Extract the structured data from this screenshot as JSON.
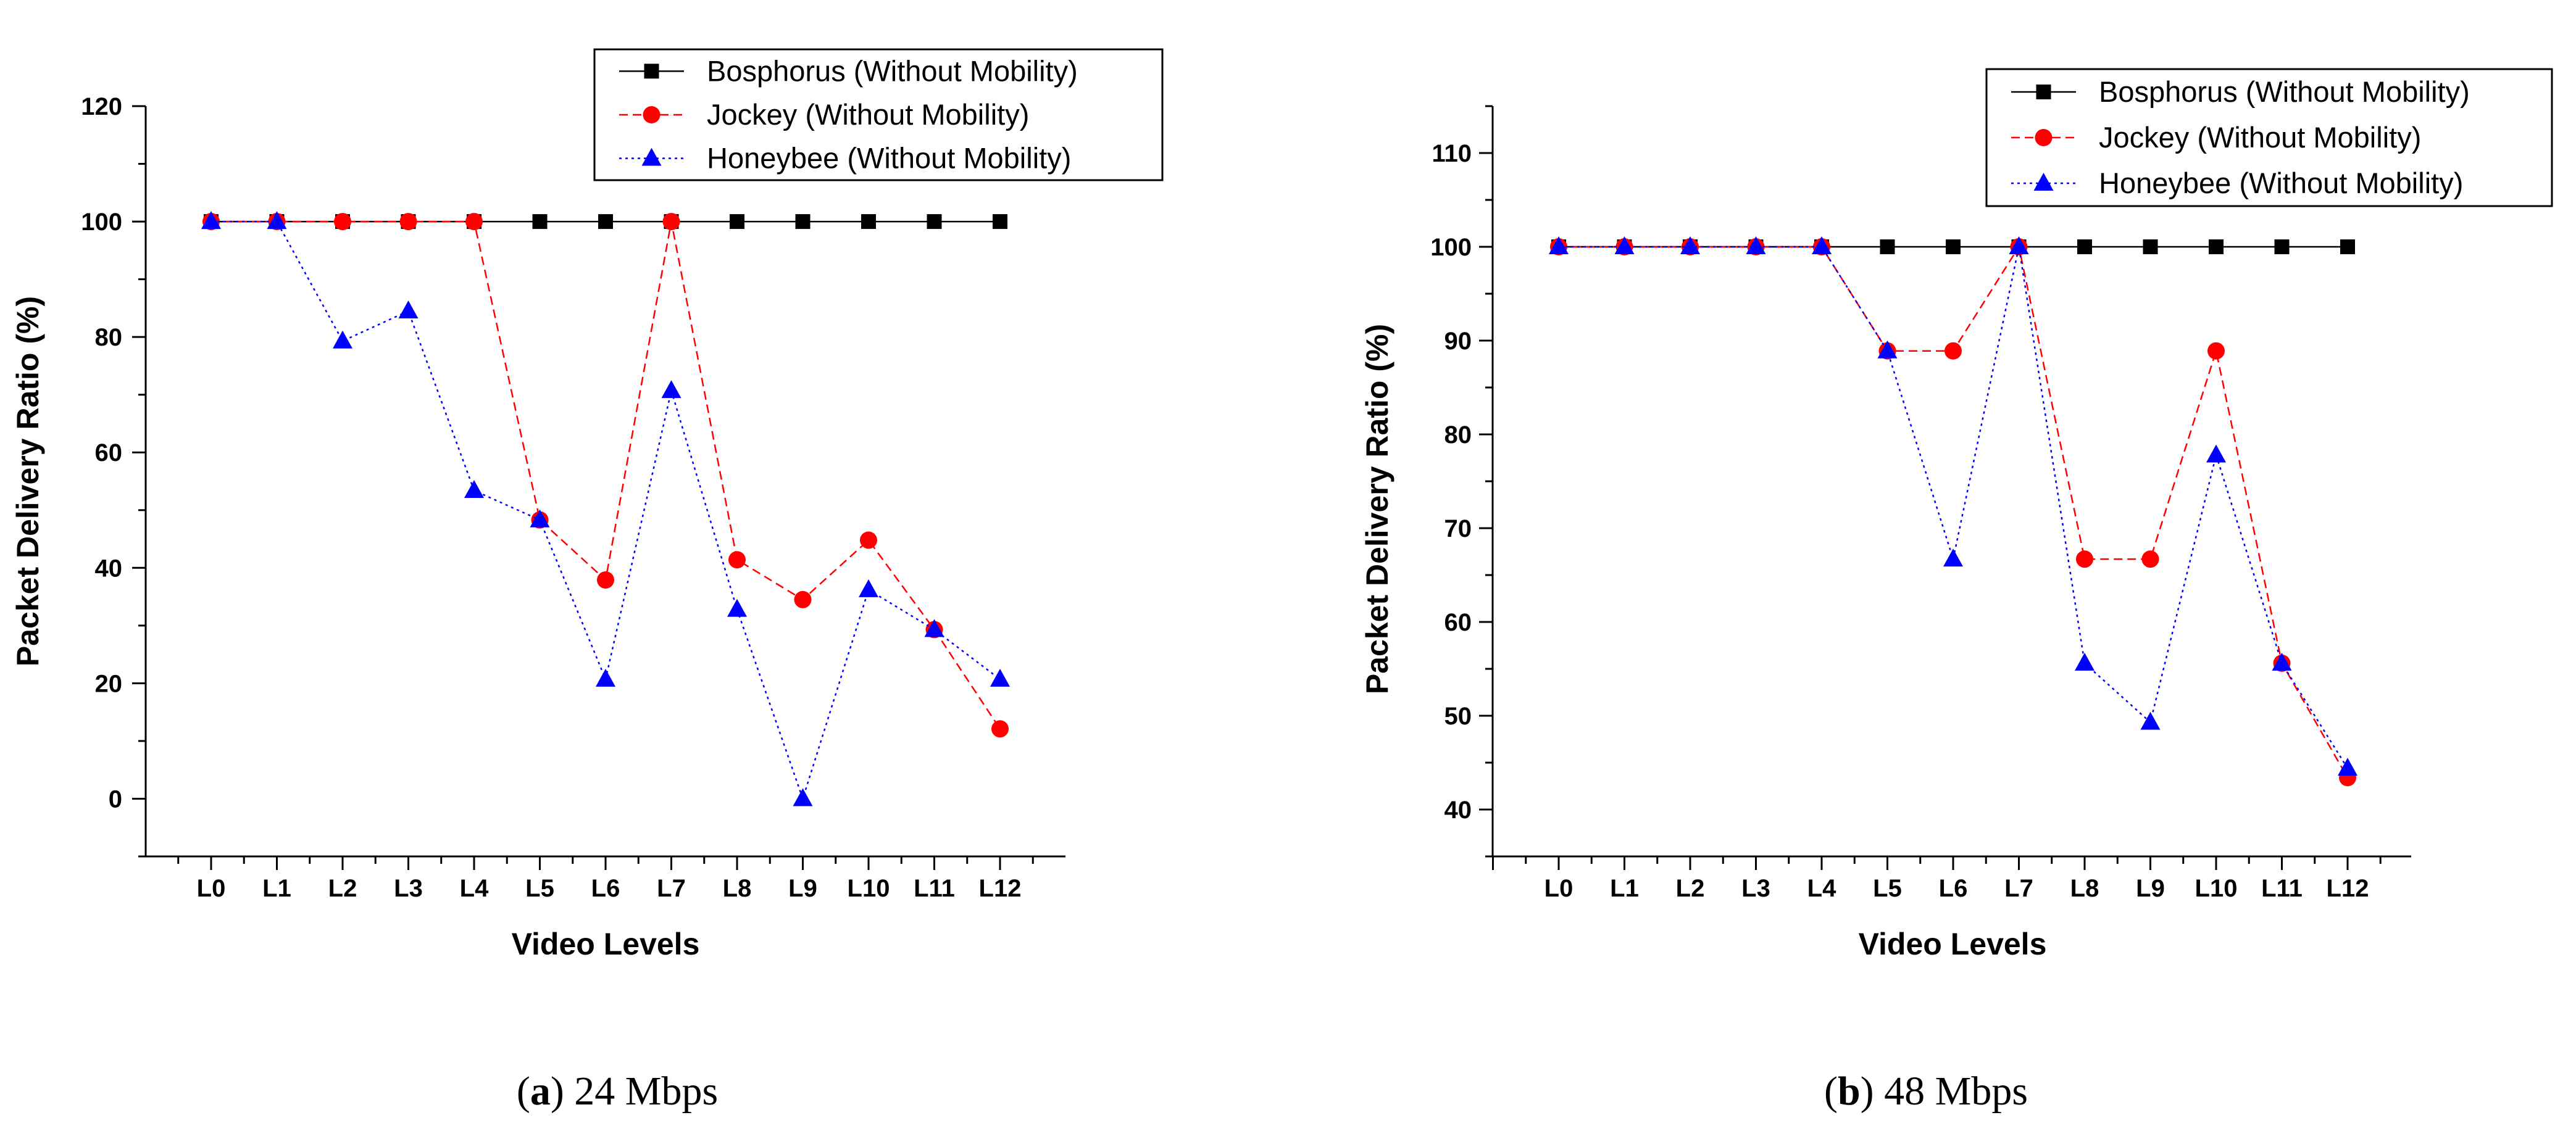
{
  "chart_data": [
    {
      "type": "line",
      "caption_letter": "a",
      "caption_text": "24 Mbps",
      "xlabel": "Video Levels",
      "ylabel": "Packet Delivery Ratio (%)",
      "ylim": [
        -10,
        120
      ],
      "yticks": [
        0,
        20,
        40,
        60,
        80,
        100,
        120
      ],
      "legend_position": "top-right",
      "categories": [
        "L0",
        "L1",
        "L2",
        "L3",
        "L4",
        "L5",
        "L6",
        "L7",
        "L8",
        "L9",
        "L10",
        "L11",
        "L12"
      ],
      "series": [
        {
          "name": "Bosphorus (Without Mobility)",
          "color": "#000000",
          "marker": "square",
          "line": "solid",
          "values": [
            100,
            100,
            100,
            100,
            100,
            100,
            100,
            100,
            100,
            100,
            100,
            100,
            100
          ]
        },
        {
          "name": "Jockey (Without Mobility)",
          "color": "#ff0000",
          "marker": "circle",
          "line": "dashed",
          "values": [
            100,
            100,
            100,
            100,
            100,
            48.3,
            37.9,
            100,
            41.4,
            34.5,
            44.8,
            29.3,
            12.1
          ]
        },
        {
          "name": "Honeybee (Without Mobility)",
          "color": "#0000ff",
          "marker": "triangle",
          "line": "dotted",
          "values": [
            100,
            100,
            79.3,
            84.5,
            53.4,
            48.3,
            20.7,
            70.7,
            32.8,
            0,
            36.2,
            29.3,
            20.7
          ]
        }
      ]
    },
    {
      "type": "line",
      "caption_letter": "b",
      "caption_text": "48 Mbps",
      "xlabel": "Video Levels",
      "ylabel": "Packet Delivery Ratio (%)",
      "ylim": [
        35,
        115
      ],
      "yticks": [
        40,
        50,
        60,
        70,
        80,
        90,
        100,
        110
      ],
      "legend_position": "top-right",
      "categories": [
        "L0",
        "L1",
        "L2",
        "L3",
        "L4",
        "L5",
        "L6",
        "L7",
        "L8",
        "L9",
        "L10",
        "L11",
        "L12"
      ],
      "series": [
        {
          "name": "Bosphorus (Without Mobility)",
          "color": "#000000",
          "marker": "square",
          "line": "solid",
          "values": [
            100,
            100,
            100,
            100,
            100,
            100,
            100,
            100,
            100,
            100,
            100,
            100,
            100
          ]
        },
        {
          "name": "Jockey (Without Mobility)",
          "color": "#ff0000",
          "marker": "circle",
          "line": "dashed",
          "values": [
            100,
            100,
            100,
            100,
            100,
            88.9,
            88.9,
            100,
            66.7,
            66.7,
            88.9,
            55.6,
            43.4
          ]
        },
        {
          "name": "Honeybee (Without Mobility)",
          "color": "#0000ff",
          "marker": "triangle",
          "line": "dotted",
          "values": [
            100,
            100,
            100,
            100,
            100,
            88.9,
            66.7,
            100,
            55.6,
            49.3,
            77.8,
            55.6,
            44.4
          ]
        }
      ]
    }
  ]
}
